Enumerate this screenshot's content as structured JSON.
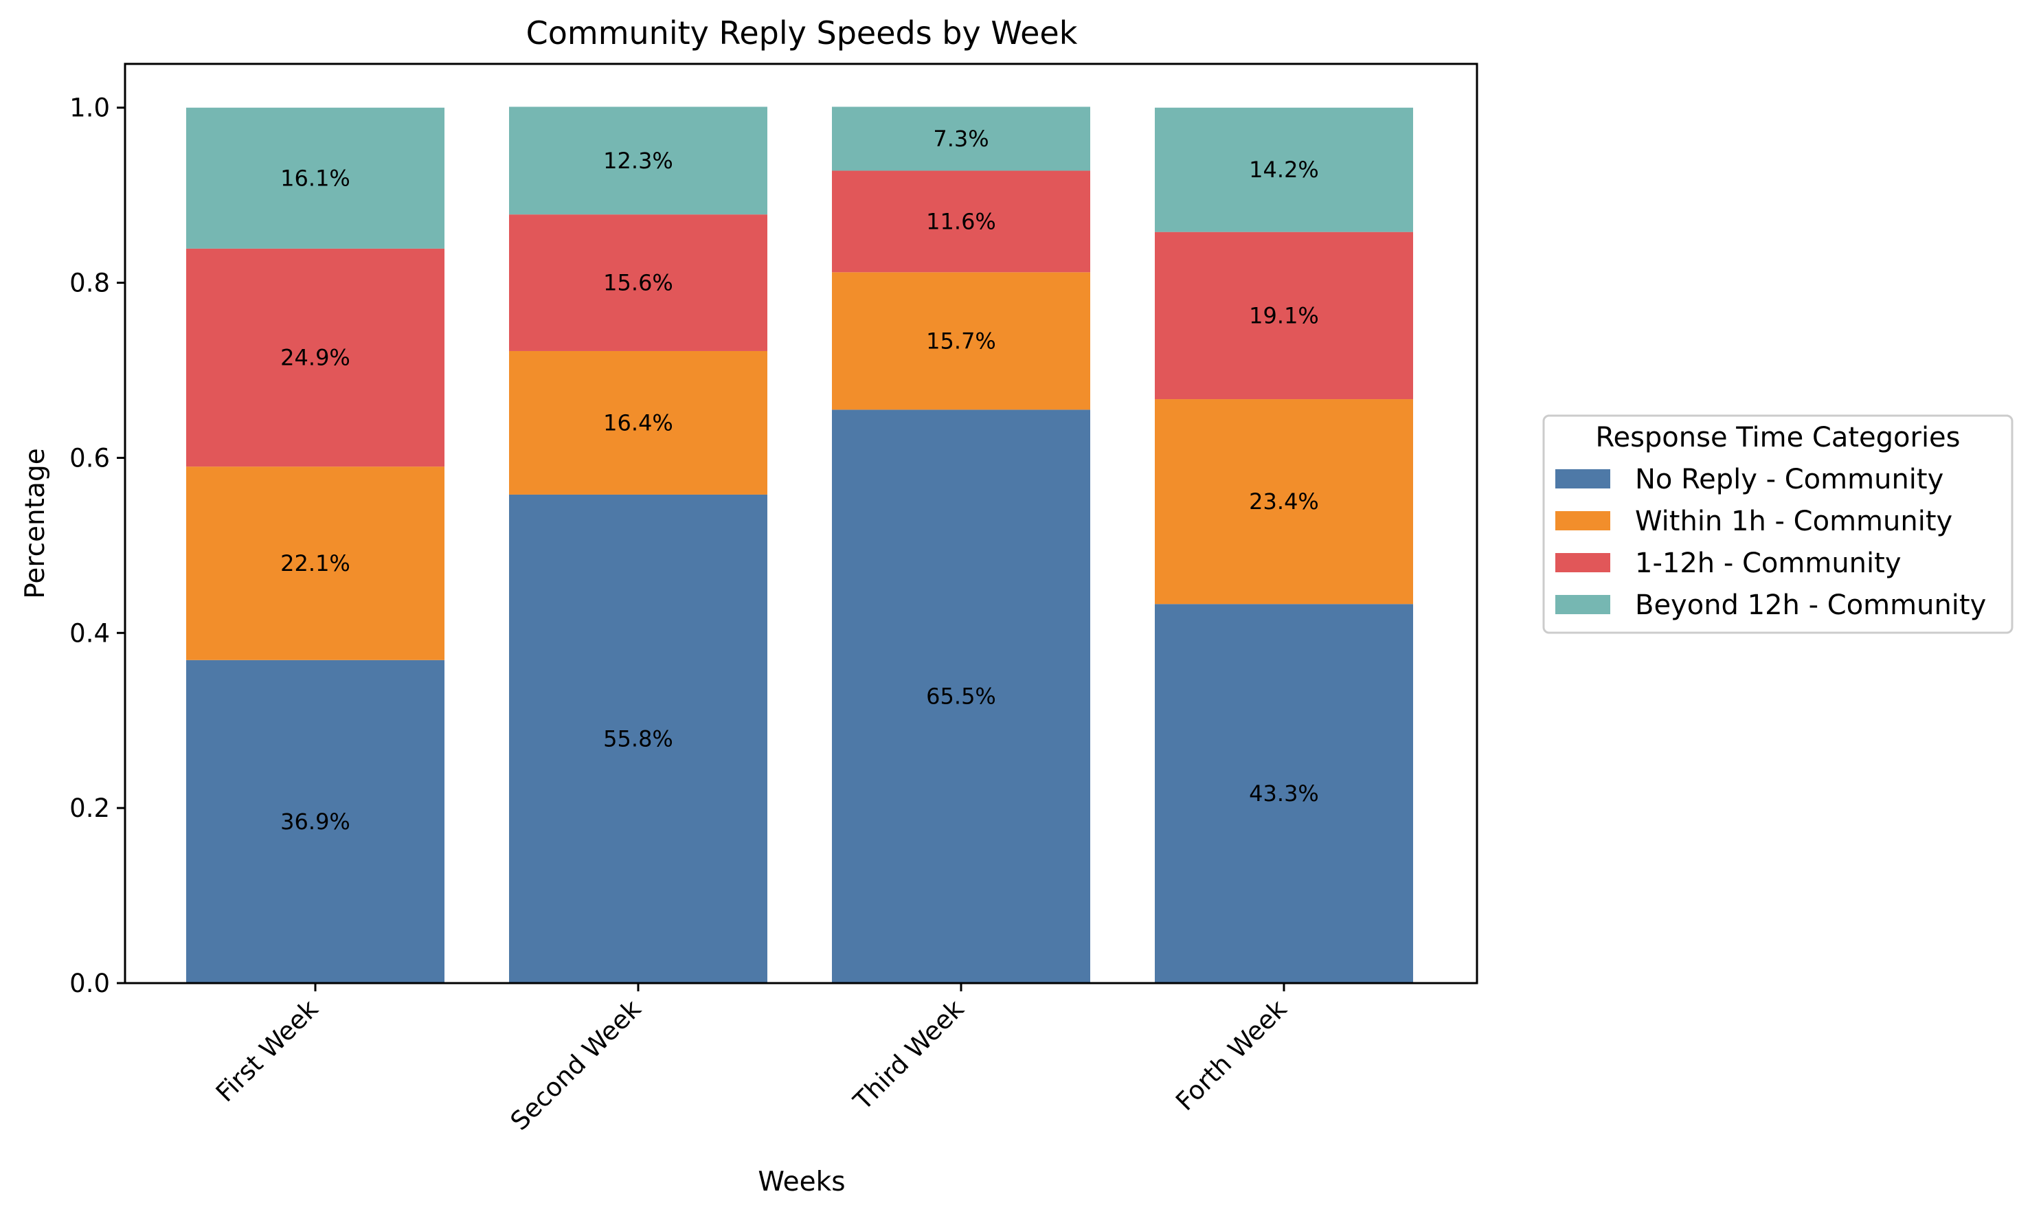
{
  "chart_data": {
    "type": "bar",
    "stacked": true,
    "title": "Community Reply Speeds by Week",
    "xlabel": "Weeks",
    "ylabel": "Percentage",
    "ylim": [
      0,
      1.05
    ],
    "yticks": [
      "0.0",
      "0.2",
      "0.4",
      "0.6",
      "0.8",
      "1.0"
    ],
    "categories": [
      "First Week",
      "Second Week",
      "Third Week",
      "Forth Week"
    ],
    "series": [
      {
        "name": "No Reply - Community",
        "color": "#4e79a7",
        "values": [
          0.369,
          0.558,
          0.655,
          0.433
        ],
        "labels": [
          "36.9%",
          "55.8%",
          "65.5%",
          "43.3%"
        ]
      },
      {
        "name": "Within 1h - Community",
        "color": "#f28e2b",
        "values": [
          0.221,
          0.164,
          0.157,
          0.234
        ],
        "labels": [
          "22.1%",
          "16.4%",
          "15.7%",
          "23.4%"
        ]
      },
      {
        "name": "1-12h - Community",
        "color": "#e15759",
        "values": [
          0.249,
          0.156,
          0.116,
          0.191
        ],
        "labels": [
          "24.9%",
          "15.6%",
          "11.6%",
          "19.1%"
        ]
      },
      {
        "name": "Beyond 12h - Community",
        "color": "#76b7b2",
        "values": [
          0.161,
          0.123,
          0.073,
          0.142
        ],
        "labels": [
          "16.1%",
          "12.3%",
          "7.3%",
          "14.2%"
        ]
      }
    ],
    "legend": {
      "title": "Response Time Categories",
      "position": "center-right"
    },
    "grid": false
  }
}
